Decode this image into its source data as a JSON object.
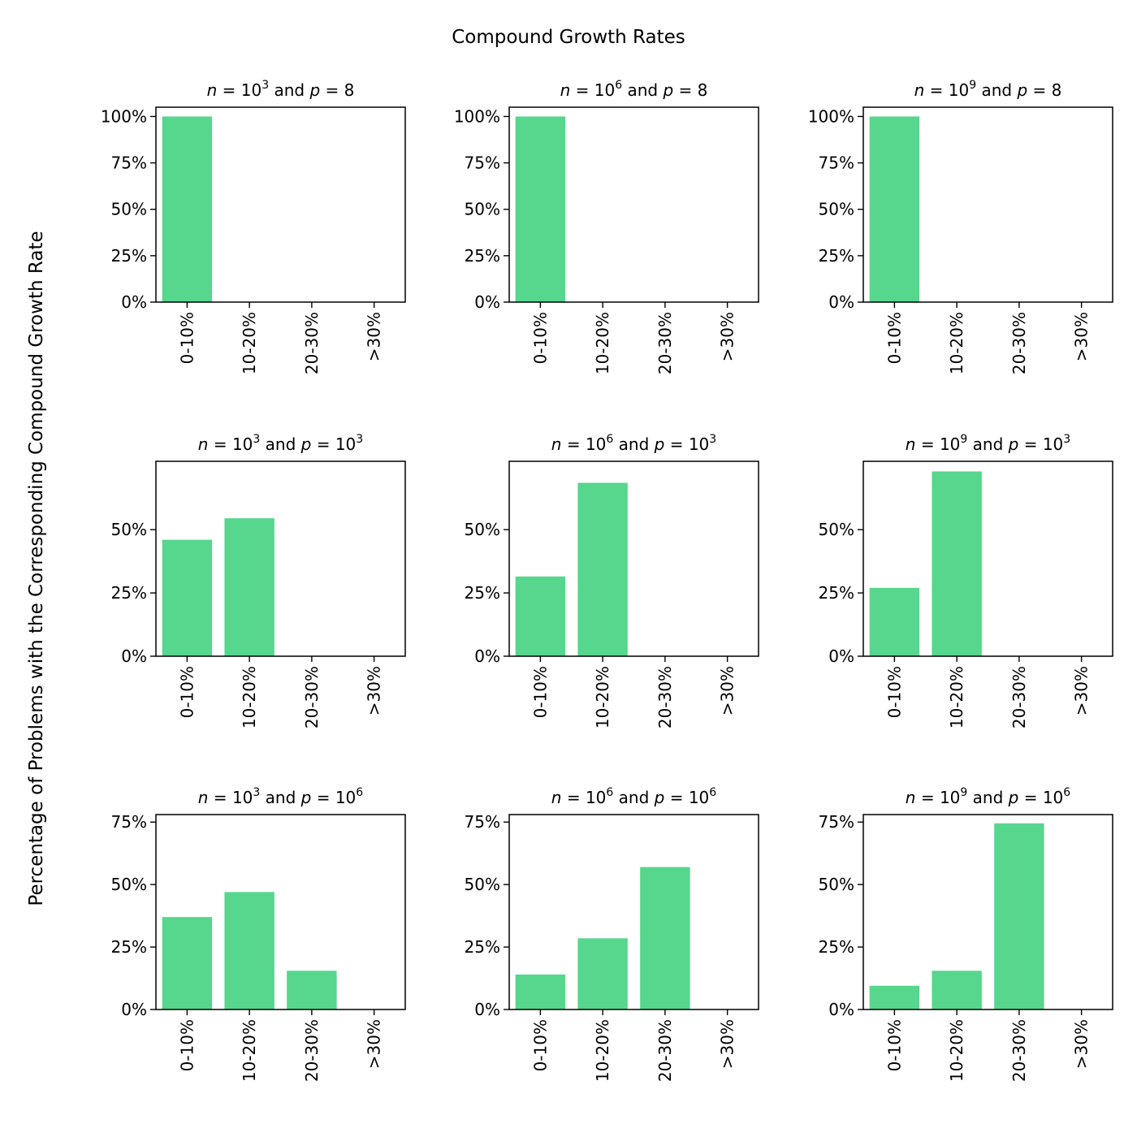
{
  "chart_data": {
    "type": "bar",
    "title": "Compound Growth Rates",
    "ylabel": "Percentage of Problems with the Corresponding Compound Growth Rate",
    "categories": [
      "0-10%",
      "10-20%",
      "20-30%",
      ">30%"
    ],
    "bar_color": "#57d68d",
    "panels": [
      {
        "n_exp": "3",
        "p_val": "8",
        "p_exp": "",
        "ylim": [
          0,
          105
        ],
        "yticks": [
          0,
          25,
          50,
          75,
          100
        ],
        "values": [
          100,
          0,
          0,
          0
        ]
      },
      {
        "n_exp": "6",
        "p_val": "8",
        "p_exp": "",
        "ylim": [
          0,
          105
        ],
        "yticks": [
          0,
          25,
          50,
          75,
          100
        ],
        "values": [
          100,
          0,
          0,
          0
        ]
      },
      {
        "n_exp": "9",
        "p_val": "8",
        "p_exp": "",
        "ylim": [
          0,
          105
        ],
        "yticks": [
          0,
          25,
          50,
          75,
          100
        ],
        "values": [
          100,
          0,
          0,
          0
        ]
      },
      {
        "n_exp": "3",
        "p_val": "10",
        "p_exp": "3",
        "ylim": [
          0,
          77
        ],
        "yticks": [
          0,
          25,
          50
        ],
        "values": [
          46,
          54.5,
          0,
          0
        ]
      },
      {
        "n_exp": "6",
        "p_val": "10",
        "p_exp": "3",
        "ylim": [
          0,
          77
        ],
        "yticks": [
          0,
          25,
          50
        ],
        "values": [
          31.5,
          68.5,
          0,
          0
        ]
      },
      {
        "n_exp": "9",
        "p_val": "10",
        "p_exp": "3",
        "ylim": [
          0,
          77
        ],
        "yticks": [
          0,
          25,
          50
        ],
        "values": [
          27,
          73,
          0,
          0
        ]
      },
      {
        "n_exp": "3",
        "p_val": "10",
        "p_exp": "6",
        "ylim": [
          0,
          78
        ],
        "yticks": [
          0,
          25,
          50,
          75
        ],
        "values": [
          37,
          47,
          15.5,
          0
        ]
      },
      {
        "n_exp": "6",
        "p_val": "10",
        "p_exp": "6",
        "ylim": [
          0,
          78
        ],
        "yticks": [
          0,
          25,
          50,
          75
        ],
        "values": [
          14,
          28.5,
          57,
          0
        ]
      },
      {
        "n_exp": "9",
        "p_val": "10",
        "p_exp": "6",
        "ylim": [
          0,
          78
        ],
        "yticks": [
          0,
          25,
          50,
          75
        ],
        "values": [
          9.5,
          15.5,
          74.5,
          0
        ]
      }
    ]
  }
}
